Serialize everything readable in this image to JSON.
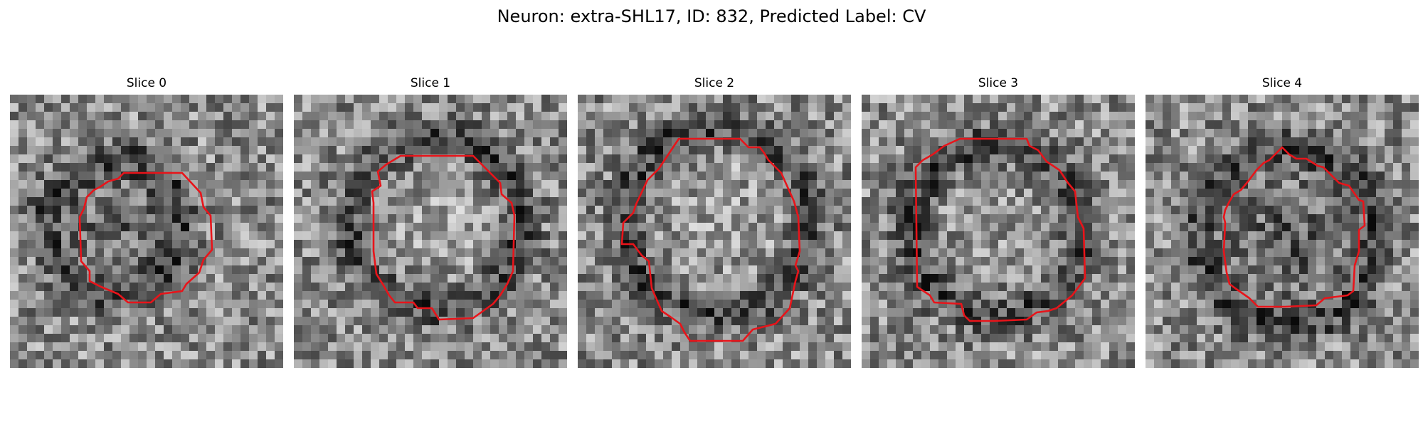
{
  "figure": {
    "title": "Neuron: extra-SHL17, ID: 832, Predicted Label: CV"
  },
  "panels": [
    {
      "title": "Slice 0"
    },
    {
      "title": "Slice 1"
    },
    {
      "title": "Slice 2"
    },
    {
      "title": "Slice 3"
    },
    {
      "title": "Slice 4"
    }
  ],
  "colors": {
    "contour": "#e8141a",
    "background": "#ffffff"
  }
}
